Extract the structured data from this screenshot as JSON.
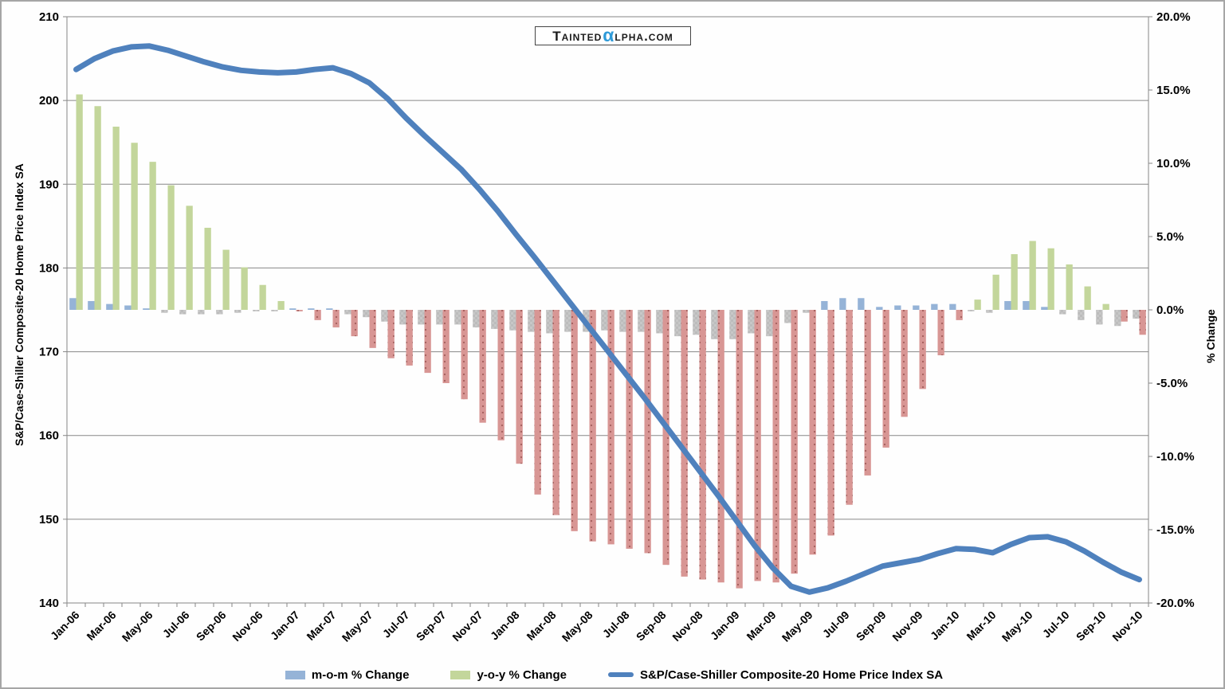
{
  "logo": {
    "pre": "Tainted",
    "alpha": "α",
    "post": "lpha.com",
    "alpha_color": "#2e9ad8"
  },
  "chart_data": {
    "type": "combo",
    "title": "",
    "x_categories": [
      "Jan-06",
      "Feb-06",
      "Mar-06",
      "Apr-06",
      "May-06",
      "Jun-06",
      "Jul-06",
      "Aug-06",
      "Sep-06",
      "Oct-06",
      "Nov-06",
      "Dec-06",
      "Jan-07",
      "Feb-07",
      "Mar-07",
      "Apr-07",
      "May-07",
      "Jun-07",
      "Jul-07",
      "Aug-07",
      "Sep-07",
      "Oct-07",
      "Nov-07",
      "Dec-07",
      "Jan-08",
      "Feb-08",
      "Mar-08",
      "Apr-08",
      "May-08",
      "Jun-08",
      "Jul-08",
      "Aug-08",
      "Sep-08",
      "Oct-08",
      "Nov-08",
      "Dec-08",
      "Jan-09",
      "Feb-09",
      "Mar-09",
      "Apr-09",
      "May-09",
      "Jun-09",
      "Jul-09",
      "Aug-09",
      "Sep-09",
      "Oct-09",
      "Nov-09",
      "Dec-09",
      "Jan-10",
      "Feb-10",
      "Mar-10",
      "Apr-10",
      "May-10",
      "Jun-10",
      "Jul-10",
      "Aug-10",
      "Sep-10",
      "Oct-10",
      "Nov-10"
    ],
    "x_label_every": 2,
    "axes": {
      "left": {
        "label": "S&P/Case-Shiller Composite-20 Home Price Index SA",
        "min": 140,
        "max": 210,
        "tick_step": 10,
        "ticks": [
          210,
          200,
          190,
          180,
          170,
          160,
          150,
          140
        ],
        "tick_labels": [
          "210",
          "200",
          "190",
          "180",
          "170",
          "160",
          "150",
          "140"
        ]
      },
      "right": {
        "label": "% Change",
        "min": -20,
        "max": 20,
        "tick_step": 5,
        "ticks": [
          20,
          15,
          10,
          5,
          0,
          -5,
          -10,
          -15,
          -20
        ],
        "tick_labels": [
          "20.0%",
          "15.0%",
          "10.0%",
          "5.0%",
          "0.0%",
          "-5.0%",
          "-10.0%",
          "-15.0%",
          "-20.0%"
        ]
      }
    },
    "grid": "horizontal",
    "legend_position": "bottom",
    "series": [
      {
        "name": "m-o-m % Change",
        "type": "bar",
        "axis": "right",
        "color_positive": "#95b3d7",
        "color_negative": "#c7c7c7",
        "values": [
          0.8,
          0.6,
          0.4,
          0.3,
          0.1,
          -0.2,
          -0.3,
          -0.3,
          -0.3,
          -0.2,
          -0.1,
          -0.1,
          0.1,
          0.1,
          0.1,
          -0.3,
          -0.5,
          -0.8,
          -1.0,
          -1.0,
          -1.0,
          -1.0,
          -1.2,
          -1.3,
          -1.4,
          -1.5,
          -1.6,
          -1.5,
          -1.5,
          -1.4,
          -1.5,
          -1.5,
          -1.6,
          -1.8,
          -1.7,
          -2.0,
          -2.0,
          -1.6,
          -1.8,
          -0.9,
          -0.2,
          0.6,
          0.8,
          0.8,
          0.2,
          0.3,
          0.3,
          0.4,
          0.4,
          -0.1,
          -0.2,
          0.6,
          0.6,
          0.2,
          -0.3,
          -0.7,
          -1.0,
          -1.1,
          -0.6
        ]
      },
      {
        "name": "y-o-y % Change",
        "type": "bar",
        "axis": "right",
        "color_positive": "#c3d69b",
        "color_negative": "#d89694",
        "values": [
          14.7,
          13.9,
          12.5,
          11.4,
          10.1,
          8.5,
          7.1,
          5.6,
          4.1,
          2.9,
          1.7,
          0.6,
          -0.1,
          -0.7,
          -1.2,
          -1.8,
          -2.6,
          -3.3,
          -3.8,
          -4.3,
          -5.0,
          -6.1,
          -7.7,
          -8.9,
          -10.5,
          -12.6,
          -14.0,
          -15.1,
          -15.8,
          -16.0,
          -16.3,
          -16.6,
          -17.4,
          -18.2,
          -18.4,
          -18.6,
          -19.0,
          -18.5,
          -18.6,
          -18.0,
          -16.7,
          -15.4,
          -13.3,
          -11.3,
          -9.4,
          -7.3,
          -5.4,
          -3.1,
          -0.7,
          0.7,
          2.4,
          3.8,
          4.7,
          4.2,
          3.1,
          1.6,
          0.4,
          -0.8,
          -1.7
        ]
      },
      {
        "name": "S&P/Case-Shiller Composite-20 Home Price Index SA",
        "type": "line",
        "axis": "left",
        "color": "#4f81bd",
        "values": [
          203.7,
          205.0,
          205.9,
          206.4,
          206.5,
          206.0,
          205.3,
          204.6,
          204.0,
          203.6,
          203.4,
          203.3,
          203.4,
          203.7,
          203.9,
          203.2,
          202.1,
          200.2,
          197.9,
          195.8,
          193.8,
          191.8,
          189.4,
          186.8,
          184.0,
          181.3,
          178.5,
          175.7,
          172.9,
          170.1,
          167.3,
          164.5,
          161.6,
          158.7,
          155.8,
          152.9,
          149.9,
          146.9,
          144.2,
          142.0,
          141.3,
          141.8,
          142.6,
          143.5,
          144.4,
          144.8,
          145.2,
          145.9,
          146.5,
          146.4,
          146.0,
          147.0,
          147.8,
          147.9,
          147.3,
          146.2,
          144.9,
          143.7,
          142.8
        ]
      }
    ]
  }
}
